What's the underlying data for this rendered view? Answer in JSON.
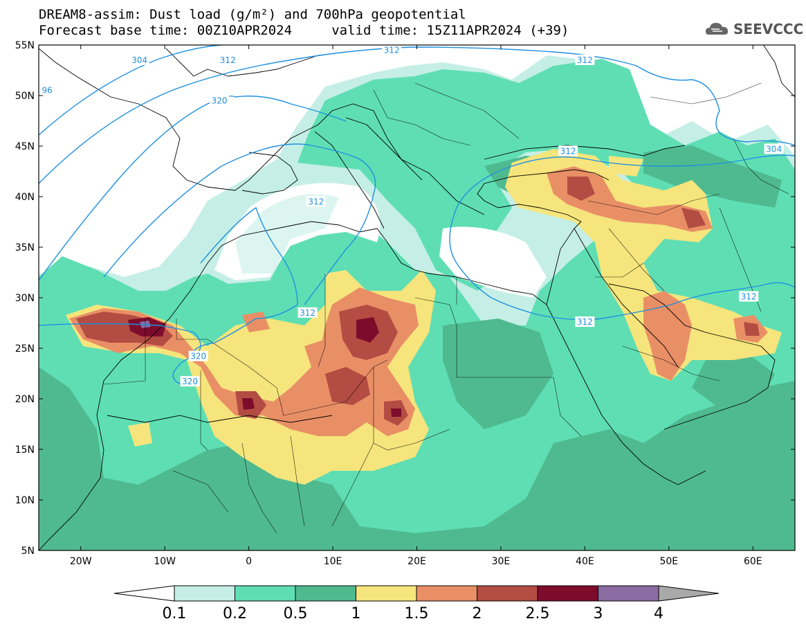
{
  "header": {
    "line1": "DREAM8-assim: Dust load (g/m²) and 700hPa geopotential",
    "line2": "Forecast base time: 00Z10APR2024     valid time: 15Z11APR2024 (+39)"
  },
  "logo": {
    "text": "SEEVCCC",
    "icon": "cloud-icon"
  },
  "map": {
    "lat_labels": [
      "55N",
      "50N",
      "45N",
      "40N",
      "35N",
      "30N",
      "25N",
      "20N",
      "15N",
      "10N",
      "5N"
    ],
    "lon_labels": [
      "20W",
      "10W",
      "0",
      "10E",
      "20E",
      "30E",
      "40E",
      "50E",
      "60E"
    ],
    "extent": {
      "lon": [
        -25,
        65
      ],
      "lat": [
        5,
        55
      ]
    },
    "contour_labels": [
      {
        "text": "304",
        "lon": -13,
        "lat": 53.5
      },
      {
        "text": "312",
        "lon": -2.5,
        "lat": 53.5
      },
      {
        "text": "312",
        "lon": 17,
        "lat": 54.5
      },
      {
        "text": "312",
        "lon": 40,
        "lat": 53.5
      },
      {
        "text": "96",
        "lon": -24,
        "lat": 50.5
      },
      {
        "text": "320",
        "lon": -3.5,
        "lat": 49.5
      },
      {
        "text": "312",
        "lon": 8,
        "lat": 39.5
      },
      {
        "text": "312",
        "lon": 38,
        "lat": 44.5
      },
      {
        "text": "304",
        "lon": 62.5,
        "lat": 44.7
      },
      {
        "text": "312",
        "lon": 59.5,
        "lat": 30.1
      },
      {
        "text": "312",
        "lon": 7,
        "lat": 28.5
      },
      {
        "text": "312",
        "lon": 40,
        "lat": 27.6
      },
      {
        "text": "320",
        "lon": -6,
        "lat": 24.2
      },
      {
        "text": "320",
        "lon": -7,
        "lat": 21.7
      }
    ]
  },
  "colorbar": {
    "labels": [
      "0.1",
      "0.2",
      "0.5",
      "1",
      "1.5",
      "2",
      "2.5",
      "3",
      "4"
    ],
    "colors": [
      "#c5efe6",
      "#5fdeb4",
      "#4fba8f",
      "#f6e57c",
      "#e98f66",
      "#b34c42",
      "#7d0c2c",
      "#8b6ba1"
    ],
    "under_color": "#ffffff",
    "over_color": "#a9a9a9"
  },
  "colors": {
    "lowest": "#c5efe6",
    "low": "#5fdeb4",
    "mid": "#4fba8f",
    "yellow": "#f6e57c",
    "orange": "#e98f66",
    "red": "#b34c42",
    "darkred": "#7d0c2c",
    "purple": "#8b6ba1",
    "contour": "#1e90e0"
  }
}
